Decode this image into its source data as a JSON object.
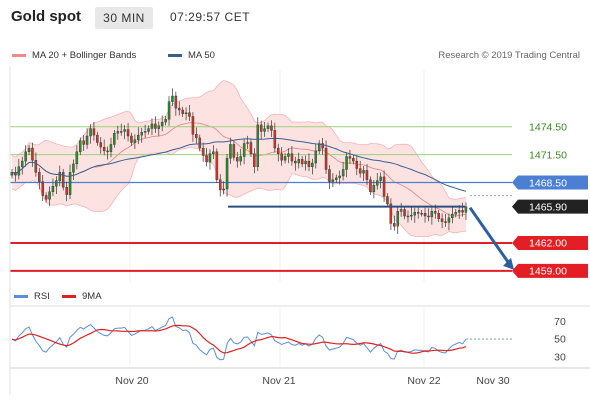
{
  "header": {
    "title": "Gold spot",
    "timeframe": "30 MIN",
    "clock": "07:29:57 CET"
  },
  "legend": {
    "ma20_label": "MA 20 + Bollinger Bands",
    "ma20_color": "#f08a8a",
    "ma50_label": "MA 50",
    "ma50_color": "#3a5f8f",
    "credit": "Research © 2019 Trading Central"
  },
  "rsi_legend": {
    "rsi_label": "RSI",
    "rsi_color": "#5b8fdc",
    "ma9_label": "9MA",
    "ma9_color": "#e02020"
  },
  "chart_data": [
    {
      "type": "candlestick",
      "title": "Gold spot",
      "y_axis_labels": [
        {
          "value": 1474.5,
          "label": "1474.50",
          "style": "green-line"
        },
        {
          "value": 1471.5,
          "label": "1471.50",
          "style": "green-line"
        },
        {
          "value": 1468.5,
          "label": "1468.50",
          "style": "blue-line"
        },
        {
          "value": 1465.9,
          "label": "1465.90",
          "style": "last-price"
        },
        {
          "value": 1462.0,
          "label": "1462.00",
          "style": "red-line"
        },
        {
          "value": 1459.0,
          "label": "1459.00",
          "style": "red-line"
        }
      ],
      "x_tick_labels": [
        "Nov 20",
        "Nov 21",
        "Nov 22",
        "Nov 30"
      ],
      "ylim": [
        1457.8,
        1480.6
      ],
      "series": [
        {
          "name": "MA 20 + Bollinger Bands"
        },
        {
          "name": "MA 50"
        }
      ],
      "close": [
        1469.6,
        1469.3,
        1470.2,
        1470.8,
        1471.8,
        1472.2,
        1470.9,
        1469.6,
        1468.6,
        1467.1,
        1466.7,
        1467.5,
        1468.1,
        1468.7,
        1469.6,
        1468.0,
        1467.2,
        1469.6,
        1470.5,
        1471.8,
        1473.0,
        1472.6,
        1473.5,
        1474.3,
        1473.6,
        1472.8,
        1472.3,
        1471.9,
        1471.8,
        1472.6,
        1473.8,
        1474.0,
        1474.0,
        1474.2,
        1473.5,
        1472.8,
        1473.1,
        1473.6,
        1473.9,
        1474.0,
        1474.3,
        1474.8,
        1474.3,
        1474.6,
        1475.0,
        1475.3,
        1477.2,
        1477.8,
        1476.5,
        1476.3,
        1475.9,
        1476.0,
        1475.6,
        1473.7,
        1473.3,
        1472.2,
        1471.4,
        1470.7,
        1471.6,
        1471.8,
        1468.8,
        1467.7,
        1467.8,
        1471.1,
        1472.6,
        1471.2,
        1470.8,
        1471.3,
        1472.7,
        1472.8,
        1471.6,
        1470.2,
        1474.7,
        1474.0,
        1474.3,
        1474.6,
        1474.1,
        1472.2,
        1471.6,
        1470.9,
        1471.3,
        1471.6,
        1470.8,
        1470.6,
        1471.0,
        1470.5,
        1470.8,
        1470.2,
        1470.6,
        1471.9,
        1472.7,
        1472.2,
        1469.9,
        1468.6,
        1468.8,
        1469.0,
        1469.2,
        1469.9,
        1471.3,
        1471.1,
        1470.8,
        1470.0,
        1469.5,
        1469.8,
        1468.8,
        1467.5,
        1468.2,
        1468.7,
        1469.1,
        1467.0,
        1466.2,
        1464.1,
        1463.8,
        1465.4,
        1465.6,
        1464.9,
        1464.9,
        1465.0,
        1465.3,
        1465.2,
        1465.2,
        1464.9,
        1464.8,
        1465.4,
        1465.2,
        1464.6,
        1464.3,
        1464.2,
        1464.7,
        1465.1,
        1465.3,
        1465.5,
        1465.3,
        1465.9
      ]
    },
    {
      "type": "line",
      "title": "RSI",
      "y_tick_labels": [
        {
          "value": 70,
          "label": "70"
        },
        {
          "value": 50,
          "label": "50"
        },
        {
          "value": 30,
          "label": "30"
        }
      ],
      "ylim": [
        20,
        85
      ],
      "series": [
        {
          "name": "RSI",
          "color": "#5b8fdc"
        },
        {
          "name": "9MA",
          "color": "#e02020"
        }
      ]
    }
  ]
}
